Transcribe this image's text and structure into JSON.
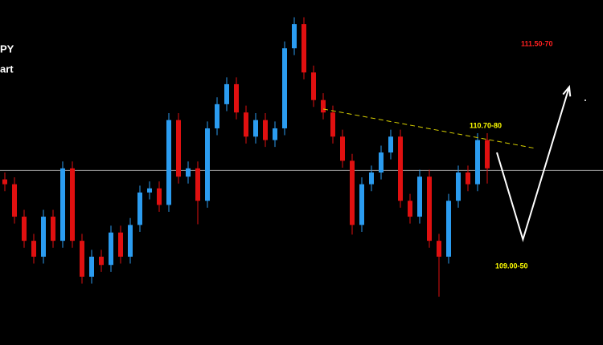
{
  "chart_data": {
    "type": "candlestick",
    "title_lines": [
      "PY",
      "art"
    ],
    "open": [
      110.1,
      110.03,
      109.56,
      109.21,
      108.98,
      109.56,
      109.21,
      110.26,
      109.21,
      108.69,
      108.98,
      108.86,
      109.33,
      108.98,
      109.44,
      109.91,
      109.97,
      109.73,
      110.96,
      110.14,
      110.26,
      109.79,
      110.84,
      111.19,
      111.48,
      111.07,
      110.72,
      110.96,
      110.67,
      110.84,
      112.0,
      112.35,
      111.65,
      111.25,
      111.07,
      110.72,
      110.37,
      109.44,
      110.03,
      110.2,
      110.49,
      110.72,
      109.79,
      109.56,
      110.14,
      109.21,
      108.98,
      109.79,
      110.2,
      110.03,
      110.67
    ],
    "high": [
      110.2,
      110.13,
      109.66,
      109.31,
      109.66,
      109.66,
      110.36,
      110.36,
      109.31,
      109.08,
      109.08,
      109.43,
      109.43,
      109.54,
      110.01,
      110.07,
      110.07,
      111.06,
      111.06,
      110.36,
      110.36,
      110.94,
      111.29,
      111.58,
      111.58,
      111.17,
      111.06,
      111.06,
      110.94,
      112.1,
      112.45,
      112.45,
      111.75,
      111.35,
      111.17,
      110.82,
      110.47,
      110.13,
      110.3,
      110.59,
      110.82,
      110.82,
      109.89,
      110.24,
      110.24,
      109.31,
      109.89,
      110.3,
      110.3,
      110.77,
      110.77
    ],
    "low": [
      109.93,
      109.46,
      109.11,
      108.88,
      108.88,
      109.11,
      109.11,
      109.11,
      108.59,
      108.59,
      108.76,
      108.76,
      108.88,
      108.88,
      109.34,
      109.81,
      109.63,
      109.63,
      110.04,
      110.04,
      109.45,
      109.69,
      110.74,
      111.09,
      110.97,
      110.62,
      110.62,
      110.57,
      110.57,
      110.74,
      111.9,
      111.55,
      111.15,
      110.97,
      110.62,
      110.27,
      109.3,
      109.34,
      109.93,
      110.1,
      110.39,
      109.69,
      109.46,
      109.46,
      109.11,
      108.4,
      108.88,
      109.69,
      109.93,
      109.93,
      110.04
    ],
    "close": [
      110.03,
      109.56,
      109.21,
      108.98,
      109.56,
      109.21,
      110.26,
      109.21,
      108.69,
      108.98,
      108.86,
      109.33,
      108.98,
      109.44,
      109.91,
      109.97,
      109.73,
      110.96,
      110.14,
      110.26,
      109.79,
      110.84,
      111.19,
      111.48,
      111.07,
      110.72,
      110.96,
      110.67,
      110.84,
      112.0,
      112.35,
      111.65,
      111.25,
      111.07,
      110.72,
      110.37,
      109.44,
      110.03,
      110.2,
      110.49,
      110.72,
      109.79,
      109.56,
      110.14,
      109.21,
      108.98,
      109.79,
      110.2,
      110.03,
      110.67,
      110.26
    ],
    "up_color": "#2b9cf0",
    "down_color": "#e01010",
    "xlim": [
      -0.5,
      62
    ],
    "ylim": [
      107.7,
      112.7
    ],
    "level": 110.23,
    "trendline": {
      "x": [
        33,
        55
      ],
      "y": [
        111.12,
        110.55
      ],
      "color": "#d8d000"
    },
    "projection": {
      "x": [
        51,
        53.7,
        58.5
      ],
      "y": [
        110.49,
        109.23,
        111.44
      ],
      "color": "#ffffff"
    },
    "annotations": [
      {
        "text": "110.70-80",
        "color": "#ffff00"
      },
      {
        "text": "109.00-50",
        "color": "#ffff00"
      },
      {
        "text": "111.50-70",
        "color": "#ff2020"
      }
    ]
  }
}
